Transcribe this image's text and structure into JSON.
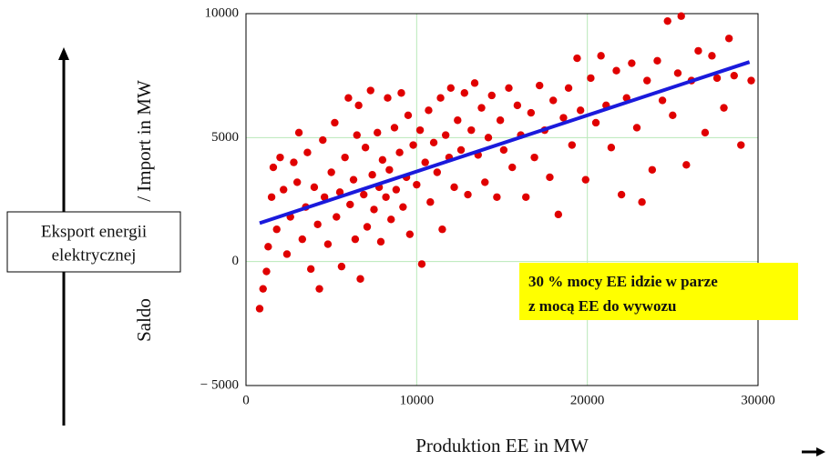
{
  "chart_data": {
    "type": "scatter",
    "xlabel": "Produktion EE in MW",
    "ylabel_parts": [
      "Saldo",
      "/ Import in MW"
    ],
    "box_text": [
      "Eksport energii",
      "elektrycznej"
    ],
    "annotation": [
      "30 % mocy EE idzie w parze",
      "z mocą EE do wywozu"
    ],
    "xlim": [
      0,
      30000
    ],
    "ylim": [
      -5000,
      10000
    ],
    "xticks": [
      0,
      10000,
      20000,
      30000
    ],
    "yticks": [
      {
        "value": -5000,
        "label": "− 5000"
      },
      0,
      5000,
      10000
    ],
    "grid": true,
    "grid_color": "#b8e8b8",
    "series": [
      {
        "style": "points",
        "color": "#e00000",
        "x": [
          800,
          1000,
          1200,
          1300,
          1500,
          1600,
          1800,
          2000,
          2200,
          2400,
          2600,
          2800,
          3000,
          3100,
          3300,
          3500,
          3600,
          3800,
          4000,
          4200,
          4300,
          4500,
          4600,
          4800,
          5000,
          5200,
          5300,
          5500,
          5600,
          5800,
          6000,
          6100,
          6300,
          6400,
          6500,
          6600,
          6700,
          6900,
          7000,
          7100,
          7300,
          7400,
          7500,
          7700,
          7800,
          7900,
          8000,
          8200,
          8300,
          8400,
          8500,
          8700,
          8800,
          9000,
          9100,
          9200,
          9400,
          9500,
          9600,
          9800,
          10000,
          10200,
          10300,
          10500,
          10700,
          10800,
          11000,
          11200,
          11400,
          11500,
          11700,
          11900,
          12000,
          12200,
          12400,
          12600,
          12800,
          13000,
          13200,
          13400,
          13600,
          13800,
          14000,
          14200,
          14400,
          14700,
          14900,
          15100,
          15400,
          15600,
          15900,
          16100,
          16400,
          16700,
          16900,
          17200,
          17500,
          17800,
          18000,
          18300,
          18600,
          18900,
          19100,
          19400,
          19600,
          19900,
          20200,
          20500,
          20800,
          21100,
          21400,
          21700,
          22000,
          22300,
          22600,
          22900,
          23200,
          23500,
          23800,
          24100,
          24400,
          24700,
          25000,
          25300,
          25500,
          25800,
          26100,
          26500,
          26900,
          27300,
          27600,
          28000,
          28300,
          28600,
          29000,
          29600
        ],
        "values": [
          -1900,
          -1100,
          -400,
          600,
          2600,
          3800,
          1300,
          4200,
          2900,
          300,
          1800,
          4000,
          3200,
          5200,
          900,
          2200,
          4400,
          -300,
          3000,
          1500,
          -1100,
          4900,
          2600,
          700,
          3600,
          5600,
          1800,
          2800,
          -200,
          4200,
          6600,
          2300,
          3300,
          900,
          5100,
          6300,
          -700,
          2700,
          4600,
          1400,
          6900,
          3500,
          2100,
          5200,
          3000,
          800,
          4100,
          2600,
          6600,
          3700,
          1700,
          5400,
          2900,
          4400,
          6800,
          2200,
          3400,
          5900,
          1100,
          4700,
          3100,
          5300,
          -100,
          4000,
          6100,
          2400,
          4800,
          3600,
          6600,
          1300,
          5100,
          4200,
          7000,
          3000,
          5700,
          4500,
          6800,
          2700,
          5300,
          7200,
          4300,
          6200,
          3200,
          5000,
          6700,
          2600,
          5700,
          4500,
          7000,
          3800,
          6300,
          5100,
          2600,
          6000,
          4200,
          7100,
          5300,
          3400,
          6500,
          1900,
          5800,
          7000,
          4700,
          8200,
          6100,
          3300,
          7400,
          5600,
          8300,
          6300,
          4600,
          7700,
          2700,
          6600,
          8000,
          5400,
          2400,
          7300,
          3700,
          8100,
          6500,
          9700,
          5900,
          7600,
          9900,
          3900,
          7300,
          8500,
          5200,
          8300,
          7400,
          6200,
          9000,
          7500,
          4700,
          7300
        ]
      },
      {
        "style": "line",
        "color": "#1a1adc",
        "x": [
          800,
          29500
        ],
        "values": [
          1550,
          8050
        ]
      }
    ]
  }
}
